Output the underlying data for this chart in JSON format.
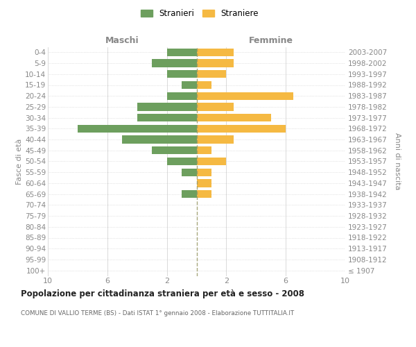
{
  "age_groups": [
    "100+",
    "95-99",
    "90-94",
    "85-89",
    "80-84",
    "75-79",
    "70-74",
    "65-69",
    "60-64",
    "55-59",
    "50-54",
    "45-49",
    "40-44",
    "35-39",
    "30-34",
    "25-29",
    "20-24",
    "15-19",
    "10-14",
    "5-9",
    "0-4"
  ],
  "birth_years": [
    "≤ 1907",
    "1908-1912",
    "1913-1917",
    "1918-1922",
    "1923-1927",
    "1928-1932",
    "1933-1937",
    "1938-1942",
    "1943-1947",
    "1948-1952",
    "1953-1957",
    "1958-1962",
    "1963-1967",
    "1968-1972",
    "1973-1977",
    "1978-1982",
    "1983-1987",
    "1988-1992",
    "1993-1997",
    "1998-2002",
    "2003-2007"
  ],
  "maschi": [
    0,
    0,
    0,
    0,
    0,
    0,
    0,
    1,
    0,
    1,
    2,
    3,
    5,
    8,
    4,
    4,
    2,
    1,
    2,
    3,
    2
  ],
  "femmine": [
    0,
    0,
    0,
    0,
    0,
    0,
    0,
    1,
    1,
    1,
    2,
    1,
    2.5,
    6,
    5,
    2.5,
    6.5,
    1,
    2,
    2.5,
    2.5
  ],
  "color_maschi": "#6d9f5e",
  "color_femmine": "#f5b942",
  "xlim": 10,
  "title": "Popolazione per cittadinanza straniera per età e sesso - 2008",
  "subtitle": "COMUNE DI VALLIO TERME (BS) - Dati ISTAT 1° gennaio 2008 - Elaborazione TUTTITALIA.IT",
  "ylabel_left": "Fasce di età",
  "ylabel_right": "Anni di nascita",
  "label_maschi": "Stranieri",
  "label_femmine": "Straniere",
  "header_left": "Maschi",
  "header_right": "Femmine",
  "bg_color": "#ffffff",
  "grid_color": "#cccccc",
  "centerline_color": "#999966",
  "label_color": "#888888",
  "title_color": "#222222",
  "subtitle_color": "#666666"
}
